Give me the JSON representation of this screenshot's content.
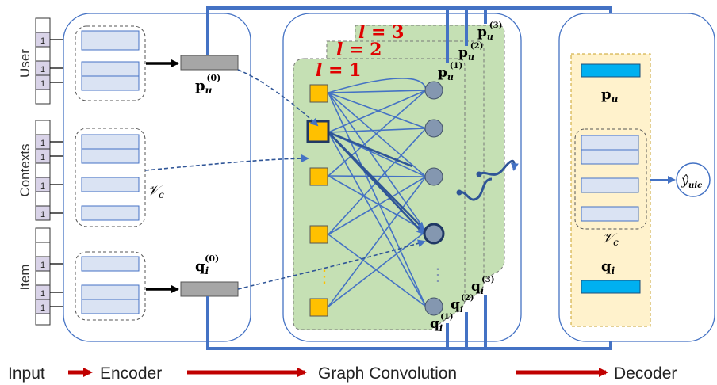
{
  "input_groups": [
    {
      "label": "User",
      "one_value": "1"
    },
    {
      "label": "Contexts",
      "one_value": "1"
    },
    {
      "label": "Item",
      "one_value": "1"
    }
  ],
  "encoder": {
    "user_output_base": "p",
    "user_output_sub": "u",
    "user_output_sup": "(0)",
    "item_output_base": "q",
    "item_output_sub": "i",
    "item_output_sup": "(0)",
    "context_set_base": "𝒱",
    "context_set_sub": "c"
  },
  "graph_conv": {
    "layers": [
      {
        "prefix": "l = ",
        "number": "1",
        "p_sup": "(1)",
        "q_sup": "(1)"
      },
      {
        "prefix": "l = ",
        "number": "2",
        "p_sup": "(2)",
        "q_sup": "(2)"
      },
      {
        "prefix": "l = ",
        "number": "3",
        "p_sup": "(3)",
        "q_sup": "(3)"
      }
    ],
    "p_base": "p",
    "p_sub": "u",
    "q_base": "q",
    "q_sub": "i",
    "layer_color": "#e00000",
    "dots": "⋮"
  },
  "decoder": {
    "p_base": "p",
    "p_sub": "u",
    "q_base": "q",
    "q_sub": "i",
    "context_set_base": "𝒱",
    "context_set_sub": "c",
    "output_base": "ŷ",
    "output_sub": "uic"
  },
  "pipeline": {
    "stages": [
      "Input",
      "Encoder",
      "Graph Convolution",
      "Decoder"
    ],
    "arrow_color": "#c00000"
  },
  "colors": {
    "blue": "#4472c4",
    "embedding_fill": "#dae3f3",
    "one_hot_fill": "#d9d3e8",
    "node_orange": "#ffc000",
    "node_gray": "#8497b0",
    "layer_green": "#c5e0b4",
    "decoder_fill": "#fff2cc",
    "cyan": "#00b0f0",
    "gray_box": "#a6a6a6"
  }
}
